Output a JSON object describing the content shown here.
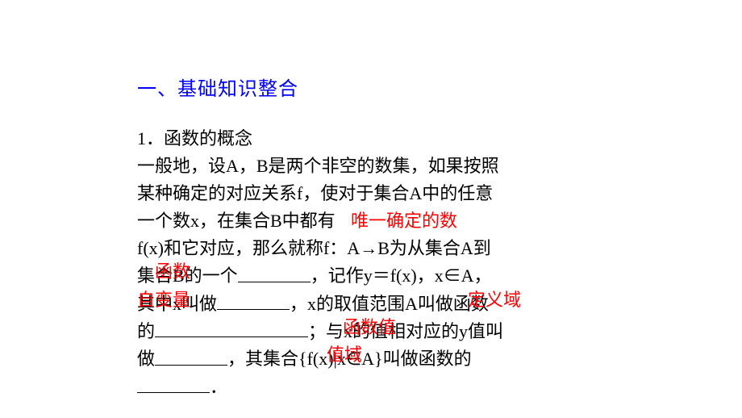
{
  "heading": "一、基础知识整合",
  "section": {
    "title": "1．函数的概念",
    "line1": "一般地，设A，B是两个非空的数集，如果按照",
    "line2": "某种确定的对应关系f，使对于集合A中的任意",
    "line3_prefix": "一个数x，在集合B中都有",
    "line4": "f(x)和它对应，那么就称f：A→B为从集合A到",
    "line5_prefix": "集合B的一个",
    "line5_suffix": "，记作y＝f(x)，x∈A，",
    "line6_prefix": "其中x叫做",
    "line6_mid": "，x的取值范围A叫做函数",
    "line7_prefix": "的",
    "line7_mid": "；与x的值相对应的y值叫",
    "line8_prefix": "做",
    "line8_suffix": "，其集合{f(x)|x∈A}叫做函数的",
    "line9_blank_only": "．"
  },
  "answers": {
    "a1": "唯一确定的数",
    "a2": "函数",
    "a3": "自变量",
    "a4": "定义域",
    "a5": "函数值",
    "a6": "值域"
  },
  "styles": {
    "heading_color": "#0000ff",
    "answer_color": "#ff0000",
    "text_color": "#000000",
    "background_color": "#ffffff",
    "heading_fontsize": 24,
    "body_fontsize": 22,
    "blank_widths": {
      "b1": 90,
      "b2": 90,
      "b3": 190,
      "b4": 90,
      "b5": 90
    }
  }
}
